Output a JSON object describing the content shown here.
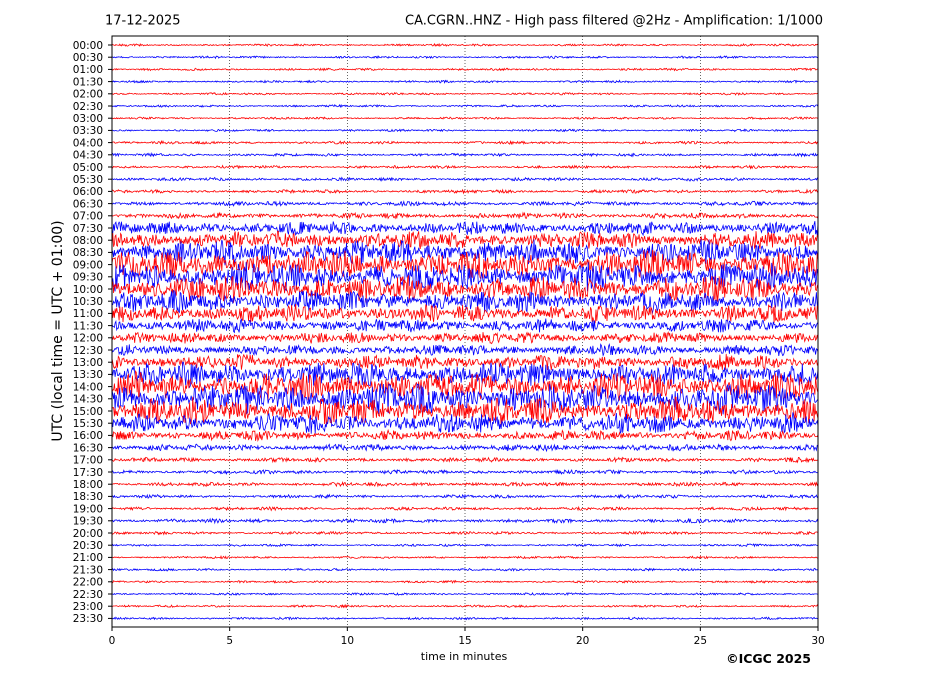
{
  "header": {
    "date": "17-12-2025",
    "title": "CA.CGRN..HNZ - High pass filtered @2Hz - Amplification: 1/1000"
  },
  "footer": {
    "copyright": "©ICGC 2025"
  },
  "chart_data": {
    "type": "line",
    "title": "CA.CGRN..HNZ - High pass filtered @2Hz - Amplification: 1/1000",
    "xlabel": "time in minutes",
    "ylabel": "UTC (local time = UTC + 01:00)",
    "xlim": [
      0,
      30
    ],
    "x_ticks": [
      "0",
      "5",
      "10",
      "15",
      "20",
      "25",
      "30"
    ],
    "grid": "vertical dotted lines at x ticks",
    "trace_colors": [
      "#ff0000",
      "#0000ff"
    ],
    "traces": [
      {
        "label": "00:00",
        "color": "red",
        "amplitude": 0.2
      },
      {
        "label": "00:30",
        "color": "blue",
        "amplitude": 0.2
      },
      {
        "label": "01:00",
        "color": "red",
        "amplitude": 0.2
      },
      {
        "label": "01:30",
        "color": "blue",
        "amplitude": 0.2
      },
      {
        "label": "02:00",
        "color": "red",
        "amplitude": 0.2
      },
      {
        "label": "02:30",
        "color": "blue",
        "amplitude": 0.2
      },
      {
        "label": "03:00",
        "color": "red",
        "amplitude": 0.2
      },
      {
        "label": "03:30",
        "color": "blue",
        "amplitude": 0.2
      },
      {
        "label": "04:00",
        "color": "red",
        "amplitude": 0.25
      },
      {
        "label": "04:30",
        "color": "blue",
        "amplitude": 0.25
      },
      {
        "label": "05:00",
        "color": "red",
        "amplitude": 0.25
      },
      {
        "label": "05:30",
        "color": "blue",
        "amplitude": 0.3
      },
      {
        "label": "06:00",
        "color": "red",
        "amplitude": 0.3
      },
      {
        "label": "06:30",
        "color": "blue",
        "amplitude": 0.4
      },
      {
        "label": "07:00",
        "color": "red",
        "amplitude": 0.5
      },
      {
        "label": "07:30",
        "color": "blue",
        "amplitude": 1.2
      },
      {
        "label": "08:00",
        "color": "red",
        "amplitude": 1.6
      },
      {
        "label": "08:30",
        "color": "blue",
        "amplitude": 2.2
      },
      {
        "label": "09:00",
        "color": "red",
        "amplitude": 2.6
      },
      {
        "label": "09:30",
        "color": "blue",
        "amplitude": 2.6
      },
      {
        "label": "10:00",
        "color": "red",
        "amplitude": 2.4
      },
      {
        "label": "10:30",
        "color": "blue",
        "amplitude": 2.0
      },
      {
        "label": "11:00",
        "color": "red",
        "amplitude": 1.6
      },
      {
        "label": "11:30",
        "color": "blue",
        "amplitude": 1.2
      },
      {
        "label": "12:00",
        "color": "red",
        "amplitude": 1.0
      },
      {
        "label": "12:30",
        "color": "blue",
        "amplitude": 1.0
      },
      {
        "label": "13:00",
        "color": "red",
        "amplitude": 1.4
      },
      {
        "label": "13:30",
        "color": "blue",
        "amplitude": 2.2
      },
      {
        "label": "14:00",
        "color": "red",
        "amplitude": 2.6
      },
      {
        "label": "14:30",
        "color": "blue",
        "amplitude": 2.8
      },
      {
        "label": "15:00",
        "color": "red",
        "amplitude": 2.4
      },
      {
        "label": "15:30",
        "color": "blue",
        "amplitude": 1.8
      },
      {
        "label": "16:00",
        "color": "red",
        "amplitude": 0.9
      },
      {
        "label": "16:30",
        "color": "blue",
        "amplitude": 0.6
      },
      {
        "label": "17:00",
        "color": "red",
        "amplitude": 0.4
      },
      {
        "label": "17:30",
        "color": "blue",
        "amplitude": 0.35
      },
      {
        "label": "18:00",
        "color": "red",
        "amplitude": 0.35
      },
      {
        "label": "18:30",
        "color": "blue",
        "amplitude": 0.3
      },
      {
        "label": "19:00",
        "color": "red",
        "amplitude": 0.3
      },
      {
        "label": "19:30",
        "color": "blue",
        "amplitude": 0.35
      },
      {
        "label": "20:00",
        "color": "red",
        "amplitude": 0.25
      },
      {
        "label": "20:30",
        "color": "blue",
        "amplitude": 0.2
      },
      {
        "label": "21:00",
        "color": "red",
        "amplitude": 0.2
      },
      {
        "label": "21:30",
        "color": "blue",
        "amplitude": 0.2
      },
      {
        "label": "22:00",
        "color": "red",
        "amplitude": 0.2
      },
      {
        "label": "22:30",
        "color": "blue",
        "amplitude": 0.2
      },
      {
        "label": "23:00",
        "color": "red",
        "amplitude": 0.2
      },
      {
        "label": "23:30",
        "color": "blue",
        "amplitude": 0.2
      }
    ]
  }
}
